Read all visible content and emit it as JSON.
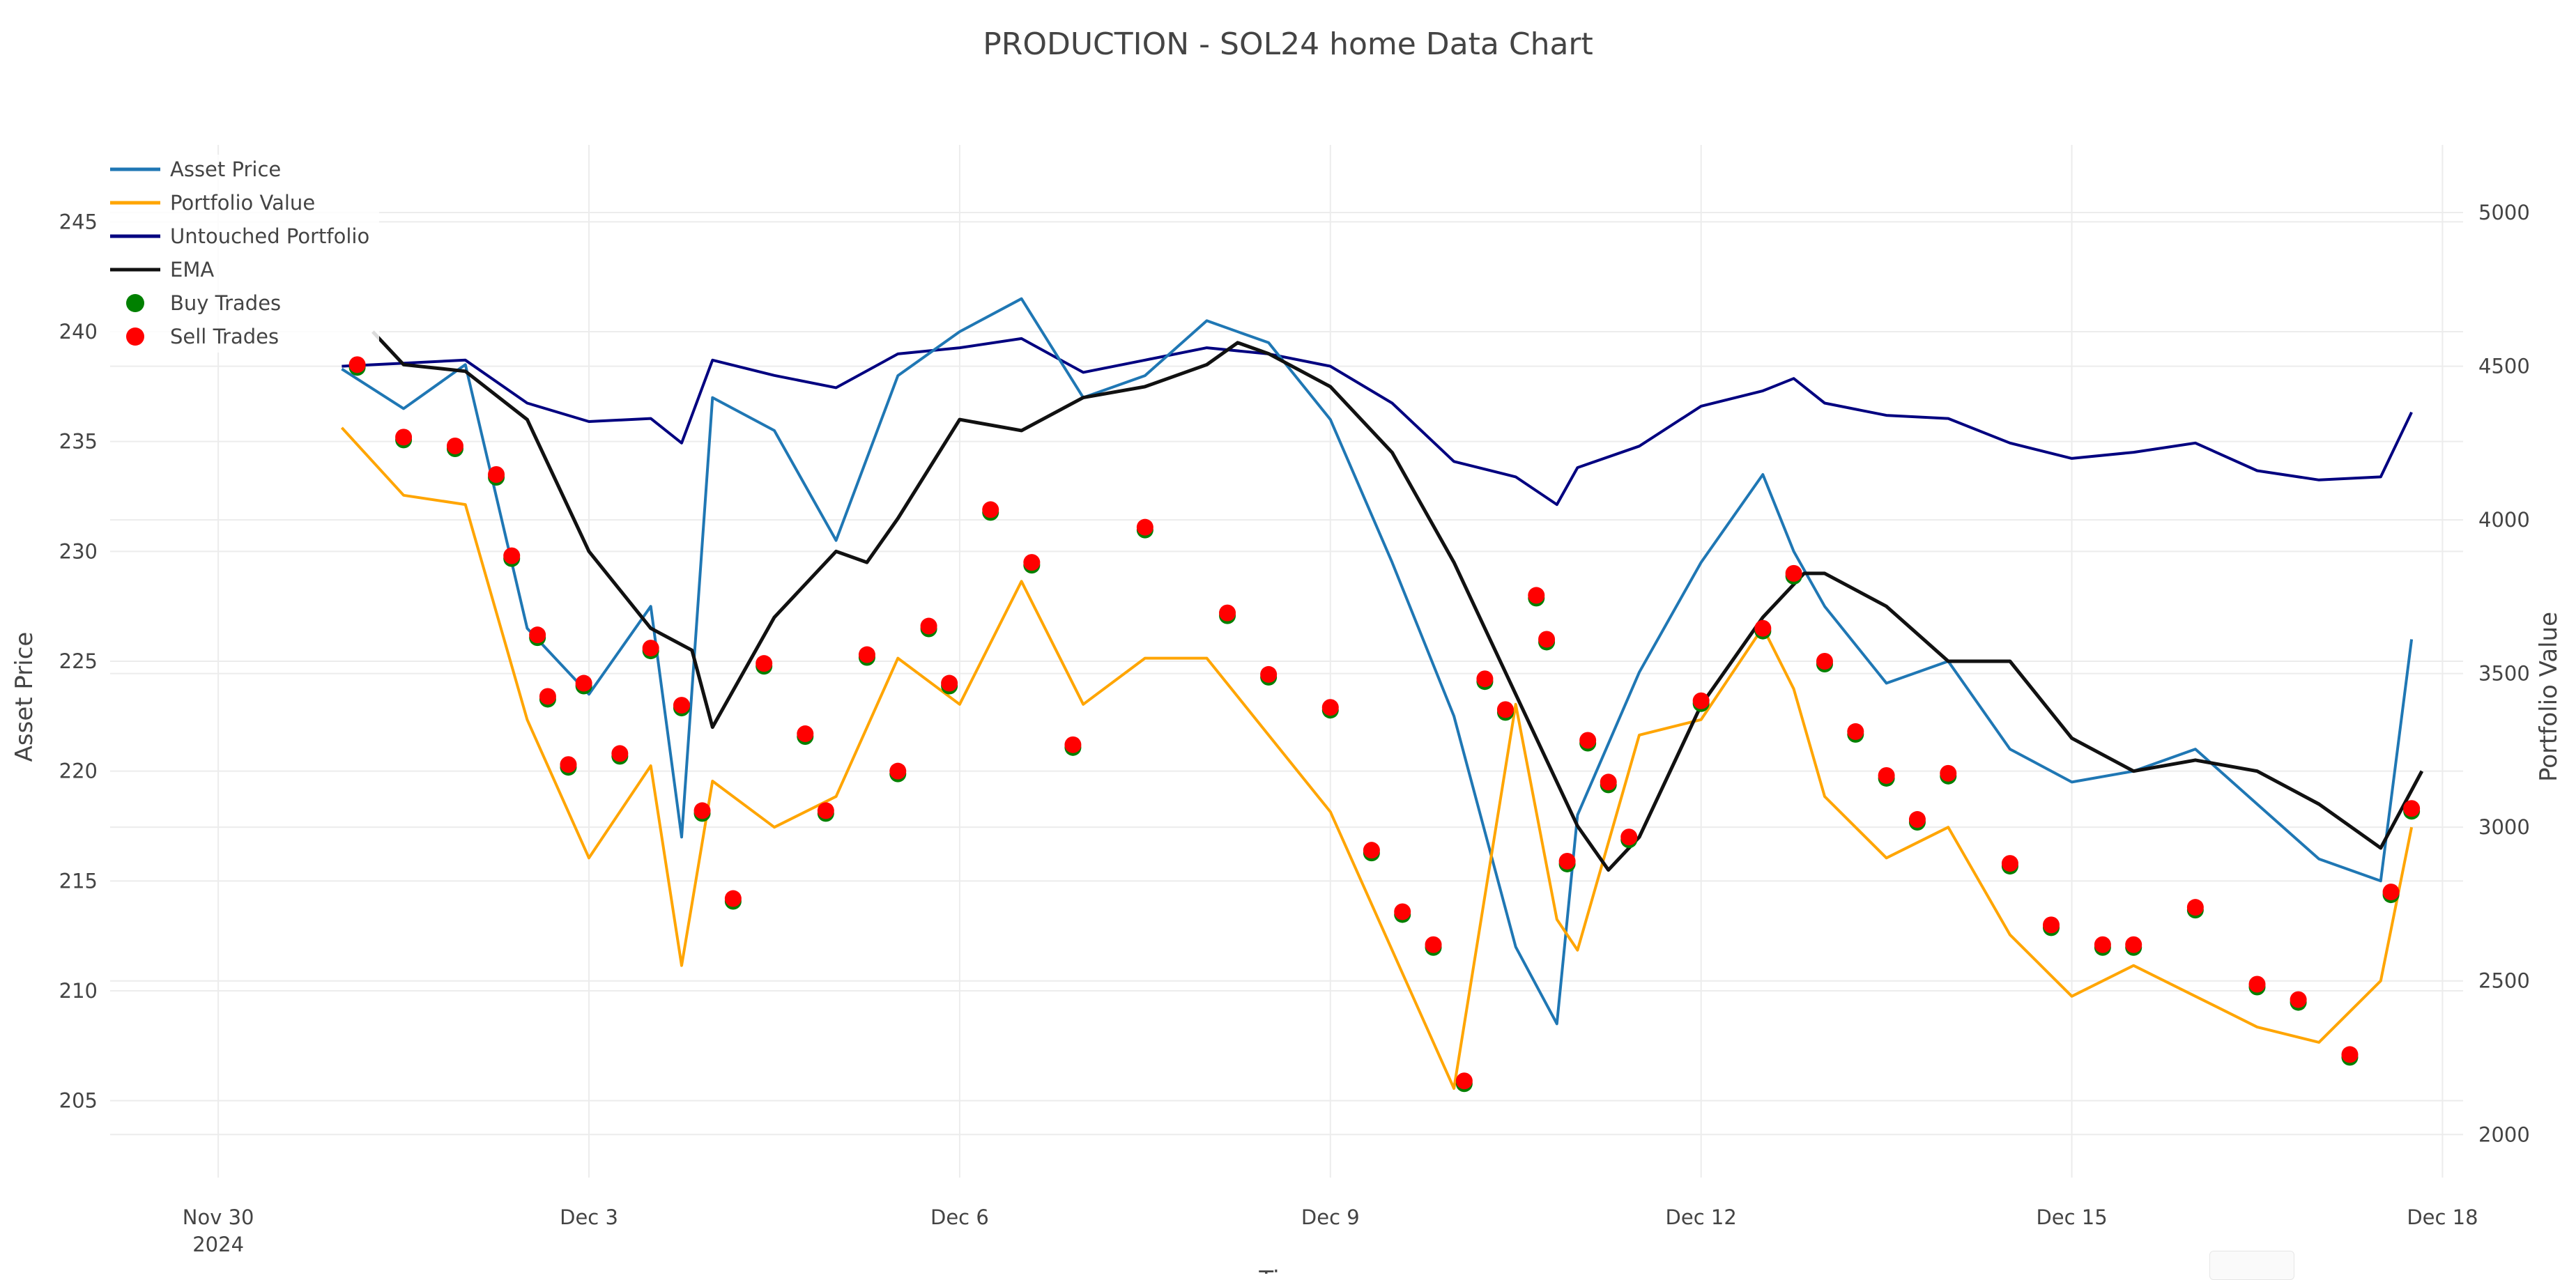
{
  "page": {
    "title": "PRODUCTION - SOL24 home Data Chart"
  },
  "chart_data": {
    "type": "line",
    "title": "PRODUCTION - SOL24 home Data Chart",
    "xlabel": "Time",
    "ylabel": "Asset Price",
    "y2label": "Portfolio Value",
    "xlim": [
      "2024-11-29T03:00",
      "2024-12-18T04:00"
    ],
    "ylim": [
      201.5,
      248.5
    ],
    "y2lim": [
      1860,
      5220
    ],
    "x_ticks": [
      {
        "date": "2024-11-30",
        "label": "Nov 30",
        "sublabel": "2024"
      },
      {
        "date": "2024-12-03",
        "label": "Dec 3",
        "sublabel": ""
      },
      {
        "date": "2024-12-06",
        "label": "Dec 6",
        "sublabel": ""
      },
      {
        "date": "2024-12-09",
        "label": "Dec 9",
        "sublabel": ""
      },
      {
        "date": "2024-12-12",
        "label": "Dec 12",
        "sublabel": ""
      },
      {
        "date": "2024-12-15",
        "label": "Dec 15",
        "sublabel": ""
      },
      {
        "date": "2024-12-18",
        "label": "Dec 18",
        "sublabel": ""
      }
    ],
    "y_ticks": [
      205,
      210,
      215,
      220,
      225,
      230,
      235,
      240,
      245
    ],
    "y2_ticks": [
      2000,
      2500,
      3000,
      3500,
      4000,
      4500,
      5000
    ],
    "grid": true,
    "legend_position": "top-left",
    "series": [
      {
        "name": "Asset Price",
        "axis": "y",
        "color": "#1f77b4",
        "x": [
          "2024-12-01T00:00",
          "2024-12-01T12:00",
          "2024-12-02T00:00",
          "2024-12-02T12:00",
          "2024-12-03T00:00",
          "2024-12-03T12:00",
          "2024-12-03T18:00",
          "2024-12-04T00:00",
          "2024-12-04T12:00",
          "2024-12-05T00:00",
          "2024-12-05T12:00",
          "2024-12-06T00:00",
          "2024-12-06T12:00",
          "2024-12-07T00:00",
          "2024-12-07T12:00",
          "2024-12-08T00:00",
          "2024-12-08T12:00",
          "2024-12-09T00:00",
          "2024-12-09T12:00",
          "2024-12-10T00:00",
          "2024-12-10T12:00",
          "2024-12-10T20:00",
          "2024-12-11T00:00",
          "2024-12-11T12:00",
          "2024-12-12T00:00",
          "2024-12-12T12:00",
          "2024-12-12T18:00",
          "2024-12-13T00:00",
          "2024-12-13T12:00",
          "2024-12-14T00:00",
          "2024-12-14T12:00",
          "2024-12-15T00:00",
          "2024-12-15T12:00",
          "2024-12-16T00:00",
          "2024-12-16T12:00",
          "2024-12-17T00:00",
          "2024-12-17T12:00",
          "2024-12-17T18:00"
        ],
        "y": [
          238.3,
          236.5,
          238.5,
          226.5,
          223.5,
          227.5,
          217.0,
          237.0,
          235.5,
          230.5,
          238.0,
          240.0,
          241.5,
          237.0,
          238.0,
          240.5,
          239.5,
          236.0,
          229.5,
          222.5,
          212.0,
          208.5,
          218.0,
          224.5,
          229.5,
          233.5,
          230.0,
          227.5,
          224.0,
          225.0,
          221.0,
          219.5,
          220.0,
          221.0,
          218.5,
          216.0,
          215.0,
          226.0
        ]
      },
      {
        "name": "Portfolio Value",
        "axis": "y2",
        "color": "#ffa500",
        "x": [
          "2024-12-01T00:00",
          "2024-12-01T12:00",
          "2024-12-02T00:00",
          "2024-12-02T12:00",
          "2024-12-03T00:00",
          "2024-12-03T12:00",
          "2024-12-03T18:00",
          "2024-12-04T00:00",
          "2024-12-04T12:00",
          "2024-12-05T00:00",
          "2024-12-05T12:00",
          "2024-12-06T00:00",
          "2024-12-06T12:00",
          "2024-12-07T00:00",
          "2024-12-07T12:00",
          "2024-12-08T00:00",
          "2024-12-08T12:00",
          "2024-12-09T00:00",
          "2024-12-09T12:00",
          "2024-12-10T00:00",
          "2024-12-10T12:00",
          "2024-12-10T20:00",
          "2024-12-11T00:00",
          "2024-12-11T12:00",
          "2024-12-12T00:00",
          "2024-12-12T12:00",
          "2024-12-12T18:00",
          "2024-12-13T00:00",
          "2024-12-13T12:00",
          "2024-12-14T00:00",
          "2024-12-14T12:00",
          "2024-12-15T00:00",
          "2024-12-15T12:00",
          "2024-12-16T00:00",
          "2024-12-16T12:00",
          "2024-12-17T00:00",
          "2024-12-17T12:00",
          "2024-12-17T18:00"
        ],
        "y": [
          4300,
          4080,
          4050,
          3350,
          2900,
          3200,
          2550,
          3150,
          3000,
          3100,
          3550,
          3400,
          3800,
          3400,
          3550,
          3550,
          3300,
          3050,
          2600,
          2150,
          3400,
          2700,
          2600,
          3300,
          3350,
          3650,
          3450,
          3100,
          2900,
          3000,
          2650,
          2450,
          2550,
          2450,
          2350,
          2300,
          2500,
          3000
        ]
      },
      {
        "name": "Untouched Portfolio",
        "axis": "y2",
        "color": "#000080",
        "x": [
          "2024-12-01T00:00",
          "2024-12-01T12:00",
          "2024-12-02T00:00",
          "2024-12-02T12:00",
          "2024-12-03T00:00",
          "2024-12-03T12:00",
          "2024-12-03T18:00",
          "2024-12-04T00:00",
          "2024-12-04T12:00",
          "2024-12-05T00:00",
          "2024-12-05T12:00",
          "2024-12-06T00:00",
          "2024-12-06T12:00",
          "2024-12-07T00:00",
          "2024-12-07T12:00",
          "2024-12-08T00:00",
          "2024-12-08T12:00",
          "2024-12-09T00:00",
          "2024-12-09T12:00",
          "2024-12-10T00:00",
          "2024-12-10T12:00",
          "2024-12-10T20:00",
          "2024-12-11T00:00",
          "2024-12-11T12:00",
          "2024-12-12T00:00",
          "2024-12-12T12:00",
          "2024-12-12T18:00",
          "2024-12-13T00:00",
          "2024-12-13T12:00",
          "2024-12-14T00:00",
          "2024-12-14T12:00",
          "2024-12-15T00:00",
          "2024-12-15T12:00",
          "2024-12-16T00:00",
          "2024-12-16T12:00",
          "2024-12-17T00:00",
          "2024-12-17T12:00",
          "2024-12-17T18:00"
        ],
        "y": [
          4500,
          4510,
          4520,
          4380,
          4320,
          4330,
          4250,
          4520,
          4470,
          4430,
          4540,
          4560,
          4590,
          4480,
          4520,
          4560,
          4540,
          4500,
          4380,
          4190,
          4140,
          4050,
          4170,
          4240,
          4370,
          4420,
          4460,
          4380,
          4340,
          4330,
          4250,
          4200,
          4220,
          4250,
          4160,
          4130,
          4140,
          4350
        ]
      },
      {
        "name": "EMA",
        "axis": "y",
        "color": "#111111",
        "x": [
          "2024-12-01T06:00",
          "2024-12-01T12:00",
          "2024-12-02T00:00",
          "2024-12-02T12:00",
          "2024-12-03T00:00",
          "2024-12-03T12:00",
          "2024-12-03T20:00",
          "2024-12-04T00:00",
          "2024-12-04T12:00",
          "2024-12-05T00:00",
          "2024-12-05T06:00",
          "2024-12-05T12:00",
          "2024-12-06T00:00",
          "2024-12-06T12:00",
          "2024-12-07T00:00",
          "2024-12-07T12:00",
          "2024-12-08T00:00",
          "2024-12-08T06:00",
          "2024-12-08T12:00",
          "2024-12-09T00:00",
          "2024-12-09T12:00",
          "2024-12-10T00:00",
          "2024-12-10T12:00",
          "2024-12-11T00:00",
          "2024-12-11T06:00",
          "2024-12-11T12:00",
          "2024-12-12T00:00",
          "2024-12-12T12:00",
          "2024-12-12T20:00",
          "2024-12-13T00:00",
          "2024-12-13T12:00",
          "2024-12-14T00:00",
          "2024-12-14T12:00",
          "2024-12-15T00:00",
          "2024-12-15T12:00",
          "2024-12-16T00:00",
          "2024-12-16T12:00",
          "2024-12-17T00:00",
          "2024-12-17T12:00",
          "2024-12-17T20:00"
        ],
        "y": [
          240.0,
          238.5,
          238.2,
          236.0,
          230.0,
          226.5,
          225.5,
          222.0,
          227.0,
          230.0,
          229.5,
          231.5,
          236.0,
          235.5,
          237.0,
          237.5,
          238.5,
          239.5,
          239.0,
          237.5,
          234.5,
          229.5,
          223.5,
          217.5,
          215.5,
          217.0,
          223.0,
          227.0,
          229.0,
          229.0,
          227.5,
          225.0,
          225.0,
          221.5,
          220.0,
          220.5,
          220.0,
          218.5,
          216.5,
          220.0
        ]
      }
    ],
    "trades": {
      "buy_color": "#008000",
      "sell_color": "#ff0000",
      "buy_label": "Buy Trades",
      "sell_label": "Sell Trades",
      "x": [
        "2024-12-01T03:00",
        "2024-12-01T12:00",
        "2024-12-01T22:00",
        "2024-12-02T06:00",
        "2024-12-02T09:00",
        "2024-12-02T14:00",
        "2024-12-02T16:00",
        "2024-12-02T20:00",
        "2024-12-02T23:00",
        "2024-12-03T06:00",
        "2024-12-03T12:00",
        "2024-12-03T18:00",
        "2024-12-03T22:00",
        "2024-12-04T04:00",
        "2024-12-04T10:00",
        "2024-12-04T18:00",
        "2024-12-04T22:00",
        "2024-12-05T06:00",
        "2024-12-05T12:00",
        "2024-12-05T18:00",
        "2024-12-05T22:00",
        "2024-12-06T06:00",
        "2024-12-06T14:00",
        "2024-12-06T22:00",
        "2024-12-07T12:00",
        "2024-12-08T04:00",
        "2024-12-08T12:00",
        "2024-12-09T00:00",
        "2024-12-09T08:00",
        "2024-12-09T14:00",
        "2024-12-09T20:00",
        "2024-12-10T02:00",
        "2024-12-10T06:00",
        "2024-12-10T10:00",
        "2024-12-10T16:00",
        "2024-12-10T18:00",
        "2024-12-10T22:00",
        "2024-12-11T02:00",
        "2024-12-11T06:00",
        "2024-12-11T10:00",
        "2024-12-12T00:00",
        "2024-12-12T12:00",
        "2024-12-12T18:00",
        "2024-12-13T00:00",
        "2024-12-13T06:00",
        "2024-12-13T12:00",
        "2024-12-13T18:00",
        "2024-12-14T00:00",
        "2024-12-14T12:00",
        "2024-12-14T20:00",
        "2024-12-15T06:00",
        "2024-12-15T12:00",
        "2024-12-16T00:00",
        "2024-12-16T12:00",
        "2024-12-16T20:00",
        "2024-12-17T06:00",
        "2024-12-17T14:00",
        "2024-12-17T18:00"
      ],
      "y": [
        238.5,
        235.2,
        234.8,
        233.5,
        229.8,
        226.2,
        223.4,
        220.3,
        224.0,
        220.8,
        225.6,
        223.0,
        218.2,
        214.2,
        224.9,
        221.7,
        218.2,
        225.3,
        220.0,
        226.6,
        224.0,
        231.9,
        229.5,
        221.2,
        231.1,
        227.2,
        224.4,
        222.9,
        216.4,
        213.6,
        212.1,
        205.9,
        224.2,
        222.8,
        228.0,
        226.0,
        215.9,
        221.4,
        219.5,
        217.0,
        223.2,
        226.5,
        229.0,
        225.0,
        221.8,
        219.8,
        217.8,
        219.9,
        215.8,
        213.0,
        212.1,
        212.1,
        213.8,
        210.3,
        209.6,
        207.1,
        214.5,
        218.3
      ]
    }
  }
}
